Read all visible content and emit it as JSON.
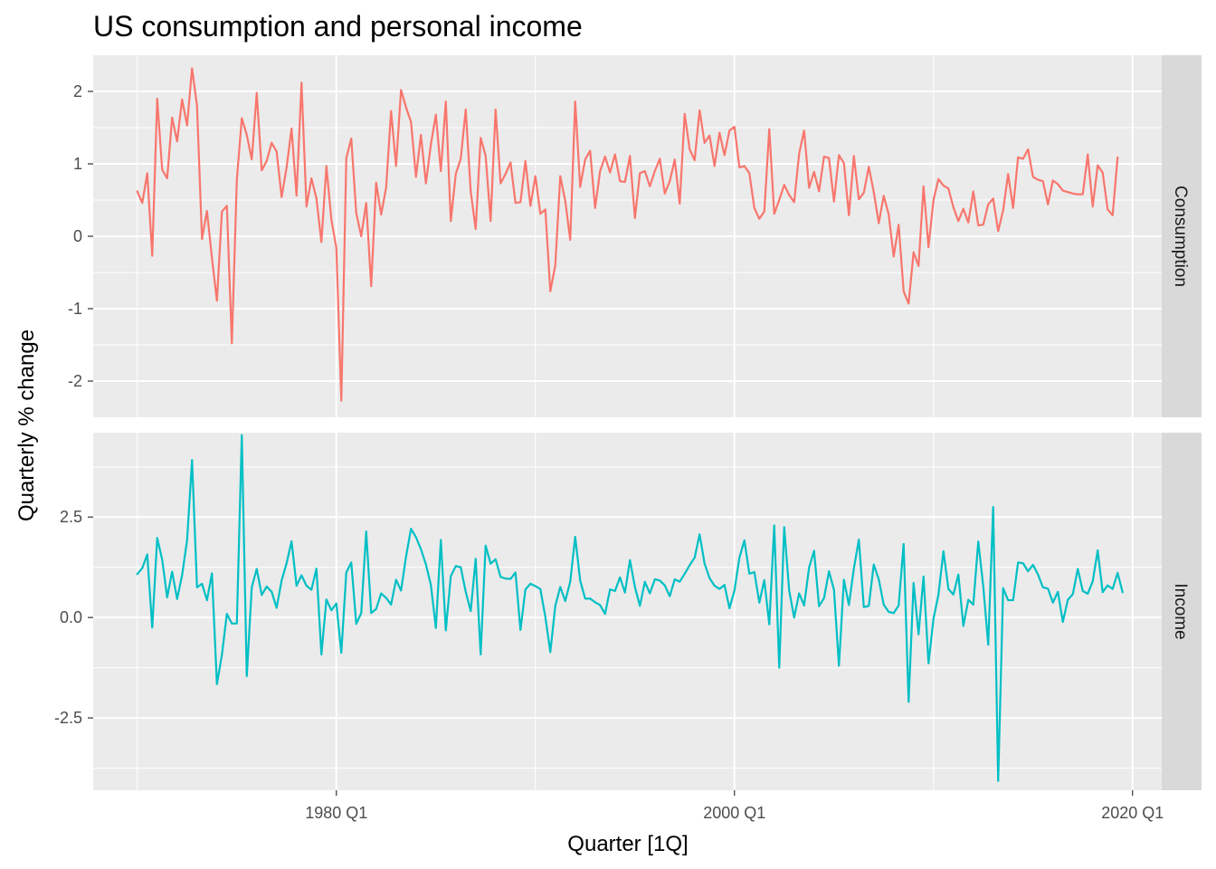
{
  "chart_data": {
    "type": "line",
    "title": "US consumption and personal income",
    "xlabel": "Quarter [1Q]",
    "ylabel": "Quarterly % change",
    "x_start": "1970 Q1",
    "x_end": "2019 Q2",
    "x_ticks": [
      "1980 Q1",
      "2000 Q1",
      "2020 Q1"
    ],
    "grid": true,
    "legend": "none",
    "facets": [
      {
        "name": "Consumption",
        "color": "#F8766D",
        "ylim": [
          -2.5,
          2.5
        ],
        "y_ticks": [
          "-2",
          "-1",
          "0",
          "1",
          "2"
        ],
        "values": [
          0.62,
          0.46,
          0.87,
          -0.27,
          1.9,
          0.92,
          0.8,
          1.64,
          1.31,
          1.89,
          1.53,
          2.32,
          1.8,
          -0.04,
          0.35,
          -0.3,
          -0.89,
          0.34,
          0.42,
          -1.48,
          0.78,
          1.63,
          1.4,
          1.06,
          1.98,
          0.91,
          1.04,
          1.29,
          1.17,
          0.54,
          0.95,
          1.49,
          0.56,
          2.12,
          0.41,
          0.8,
          0.52,
          -0.08,
          0.97,
          0.23,
          -0.16,
          -2.27,
          1.08,
          1.35,
          0.32,
          0.0,
          0.46,
          -0.69,
          0.74,
          0.3,
          0.67,
          1.73,
          0.97,
          2.02,
          1.78,
          1.58,
          0.82,
          1.4,
          0.73,
          1.27,
          1.68,
          0.9,
          1.86,
          0.21,
          0.86,
          1.07,
          1.75,
          0.62,
          0.1,
          1.36,
          1.11,
          0.21,
          1.75,
          0.73,
          0.86,
          1.02,
          0.46,
          0.47,
          1.04,
          0.42,
          0.83,
          0.31,
          0.37,
          -0.76,
          -0.4,
          0.83,
          0.49,
          -0.05,
          1.86,
          0.68,
          1.06,
          1.18,
          0.39,
          0.9,
          1.1,
          0.88,
          1.13,
          0.76,
          0.75,
          1.11,
          0.25,
          0.87,
          0.9,
          0.69,
          0.9,
          1.07,
          0.59,
          0.76,
          1.06,
          0.45,
          1.69,
          1.2,
          1.05,
          1.74,
          1.29,
          1.39,
          0.97,
          1.43,
          1.12,
          1.46,
          1.51,
          0.95,
          0.97,
          0.87,
          0.39,
          0.24,
          0.34,
          1.48,
          0.31,
          0.5,
          0.71,
          0.57,
          0.47,
          1.14,
          1.46,
          0.67,
          0.89,
          0.62,
          1.1,
          1.08,
          0.48,
          1.12,
          1.01,
          0.29,
          1.11,
          0.51,
          0.6,
          0.96,
          0.61,
          0.18,
          0.56,
          0.3,
          -0.28,
          0.16,
          -0.76,
          -0.93,
          -0.22,
          -0.41,
          0.69,
          -0.15,
          0.5,
          0.79,
          0.7,
          0.66,
          0.4,
          0.21,
          0.38,
          0.19,
          0.62,
          0.15,
          0.16,
          0.44,
          0.52,
          0.07,
          0.36,
          0.86,
          0.39,
          1.09,
          1.07,
          1.2,
          0.82,
          0.78,
          0.76,
          0.44,
          0.77,
          0.72,
          0.63,
          0.61,
          0.59,
          0.58,
          0.58,
          1.13,
          0.41,
          0.98,
          0.88,
          0.37,
          0.29,
          1.09
        ]
      },
      {
        "name": "Income",
        "color": "#00BFC4",
        "ylim": [
          -4.3,
          4.6
        ],
        "y_ticks": [
          "-2.5",
          "0.0",
          "2.5"
        ],
        "values": [
          1.08,
          1.23,
          1.57,
          -0.25,
          1.98,
          1.44,
          0.5,
          1.14,
          0.46,
          1.05,
          1.92,
          3.92,
          0.75,
          0.84,
          0.43,
          1.1,
          -1.66,
          -0.93,
          0.09,
          -0.15,
          -0.15,
          4.54,
          -1.46,
          0.75,
          1.21,
          0.56,
          0.77,
          0.64,
          0.24,
          0.92,
          1.35,
          1.9,
          0.79,
          1.05,
          0.79,
          0.69,
          1.22,
          -0.92,
          0.45,
          0.18,
          0.35,
          -0.88,
          1.12,
          1.37,
          -0.16,
          0.11,
          2.14,
          0.11,
          0.21,
          0.6,
          0.49,
          0.32,
          0.94,
          0.67,
          1.51,
          2.21,
          2.0,
          1.7,
          1.32,
          0.81,
          -0.26,
          1.93,
          -0.32,
          1.03,
          1.28,
          1.25,
          0.64,
          0.16,
          1.46,
          -0.92,
          1.79,
          1.34,
          1.45,
          1.01,
          0.97,
          0.96,
          1.12,
          -0.31,
          0.7,
          0.84,
          0.78,
          0.71,
          0.01,
          -0.86,
          0.29,
          0.76,
          0.41,
          0.89,
          2.01,
          0.92,
          0.47,
          0.47,
          0.38,
          0.31,
          0.09,
          0.7,
          0.66,
          1.0,
          0.62,
          1.43,
          0.76,
          0.29,
          0.89,
          0.6,
          0.95,
          0.92,
          0.8,
          0.53,
          0.95,
          0.89,
          1.09,
          1.3,
          1.49,
          2.07,
          1.34,
          0.98,
          0.79,
          0.71,
          0.81,
          0.23,
          0.67,
          1.49,
          1.92,
          1.09,
          1.13,
          0.37,
          0.93,
          -0.17,
          2.29,
          -1.25,
          2.25,
          0.67,
          0.0,
          0.6,
          0.3,
          1.24,
          1.66,
          0.28,
          0.48,
          1.15,
          0.69,
          -1.2,
          0.94,
          0.31,
          1.22,
          1.94,
          0.26,
          0.29,
          1.32,
          0.95,
          0.32,
          0.14,
          0.11,
          0.3,
          1.83,
          -2.1,
          0.86,
          -0.42,
          1.02,
          -1.14,
          -0.03,
          0.57,
          1.65,
          0.71,
          0.57,
          1.07,
          -0.21,
          0.44,
          0.32,
          1.89,
          0.78,
          -0.68,
          2.75,
          -4.07,
          0.73,
          0.43,
          0.43,
          1.37,
          1.35,
          1.15,
          1.31,
          1.07,
          0.75,
          0.72,
          0.37,
          0.64,
          -0.11,
          0.44,
          0.58,
          1.21,
          0.66,
          0.59,
          0.9,
          1.67,
          0.63,
          0.8,
          0.71,
          1.11,
          0.63
        ]
      }
    ]
  }
}
